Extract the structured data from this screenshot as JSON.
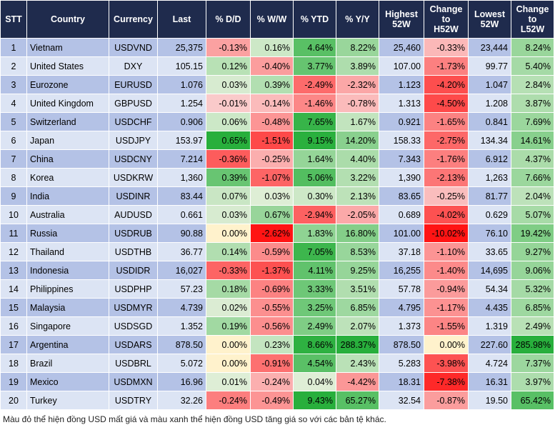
{
  "table": {
    "header": [
      [
        "STT"
      ],
      [
        "Country"
      ],
      [
        "Currency"
      ],
      [
        "Last"
      ],
      [
        "% D/D"
      ],
      [
        "% W/W"
      ],
      [
        "% YTD"
      ],
      [
        "% Y/Y"
      ],
      [
        "Highest",
        "52W"
      ],
      [
        "Change",
        "to",
        "H52W"
      ],
      [
        "Lowest",
        "52W"
      ],
      [
        "Change",
        "to",
        "L52W"
      ]
    ],
    "rows": [
      [
        "1",
        "Vietnam",
        "USDVND",
        "25,375",
        "-0.13%",
        "0.16%",
        "4.64%",
        "8.22%",
        "25,460",
        "-0.33%",
        "23,444",
        "8.24%"
      ],
      [
        "2",
        "United States",
        "DXY",
        "105.15",
        "0.12%",
        "-0.40%",
        "3.77%",
        "3.89%",
        "107.00",
        "-1.73%",
        "99.77",
        "5.40%"
      ],
      [
        "3",
        "Eurozone",
        "EURUSD",
        "1.076",
        "0.03%",
        "0.39%",
        "-2.49%",
        "-2.32%",
        "1.123",
        "-4.20%",
        "1.047",
        "2.84%"
      ],
      [
        "4",
        "United Kingdom",
        "GBPUSD",
        "1.254",
        "-0.01%",
        "-0.14%",
        "-1.46%",
        "-0.78%",
        "1.313",
        "-4.50%",
        "1.208",
        "3.87%"
      ],
      [
        "5",
        "Switzerland",
        "USDCHF",
        "0.906",
        "0.06%",
        "-0.48%",
        "7.65%",
        "1.67%",
        "0.921",
        "-1.65%",
        "0.841",
        "7.69%"
      ],
      [
        "6",
        "Japan",
        "USDJPY",
        "153.97",
        "0.65%",
        "-1.51%",
        "9.15%",
        "14.20%",
        "158.33",
        "-2.75%",
        "134.34",
        "14.61%"
      ],
      [
        "7",
        "China",
        "USDCNY",
        "7.214",
        "-0.36%",
        "-0.25%",
        "1.64%",
        "4.40%",
        "7.343",
        "-1.76%",
        "6.912",
        "4.37%"
      ],
      [
        "8",
        "Korea",
        "USDKRW",
        "1,360",
        "0.39%",
        "-1.07%",
        "5.06%",
        "3.22%",
        "1,390",
        "-2.13%",
        "1,263",
        "7.66%"
      ],
      [
        "9",
        "India",
        "USDINR",
        "83.44",
        "0.07%",
        "0.03%",
        "0.30%",
        "2.13%",
        "83.65",
        "-0.25%",
        "81.77",
        "2.04%"
      ],
      [
        "10",
        "Australia",
        "AUDUSD",
        "0.661",
        "0.03%",
        "0.67%",
        "-2.94%",
        "-2.05%",
        "0.689",
        "-4.02%",
        "0.629",
        "5.07%"
      ],
      [
        "11",
        "Russia",
        "USDRUB",
        "90.88",
        "0.00%",
        "-2.62%",
        "1.83%",
        "16.80%",
        "101.00",
        "-10.02%",
        "76.10",
        "19.42%"
      ],
      [
        "12",
        "Thailand",
        "USDTHB",
        "36.77",
        "0.14%",
        "-0.59%",
        "7.05%",
        "8.53%",
        "37.18",
        "-1.10%",
        "33.65",
        "9.27%"
      ],
      [
        "13",
        "Indonesia",
        "USDIDR",
        "16,027",
        "-0.33%",
        "-1.37%",
        "4.11%",
        "9.25%",
        "16,255",
        "-1.40%",
        "14,695",
        "9.06%"
      ],
      [
        "14",
        "Philippines",
        "USDPHP",
        "57.23",
        "0.18%",
        "-0.69%",
        "3.33%",
        "3.51%",
        "57.78",
        "-0.94%",
        "54.34",
        "5.32%"
      ],
      [
        "15",
        "Malaysia",
        "USDMYR",
        "4.739",
        "0.02%",
        "-0.55%",
        "3.25%",
        "6.85%",
        "4.795",
        "-1.17%",
        "4.435",
        "6.85%"
      ],
      [
        "16",
        "Singapore",
        "USDSGD",
        "1.352",
        "0.19%",
        "-0.56%",
        "2.49%",
        "2.07%",
        "1.373",
        "-1.55%",
        "1.319",
        "2.49%"
      ],
      [
        "17",
        "Argentina",
        "USDARS",
        "878.50",
        "0.00%",
        "0.23%",
        "8.66%",
        "288.37%",
        "878.50",
        "0.00%",
        "227.60",
        "285.98%"
      ],
      [
        "18",
        "Brazil",
        "USDBRL",
        "5.072",
        "0.00%",
        "-0.91%",
        "4.54%",
        "2.43%",
        "5.283",
        "-3.98%",
        "4.724",
        "7.37%"
      ],
      [
        "19",
        "Mexico",
        "USDMXN",
        "16.96",
        "0.01%",
        "-0.24%",
        "0.04%",
        "-4.42%",
        "18.31",
        "-7.38%",
        "16.31",
        "3.97%"
      ],
      [
        "20",
        "Turkey",
        "USDTRY",
        "32.26",
        "-0.24%",
        "-0.49%",
        "9.43%",
        "65.27%",
        "32.54",
        "-0.87%",
        "19.50",
        "65.42%"
      ]
    ]
  },
  "footnote": "Màu đỏ thể hiện đồng USD mất giá và màu xanh thể hiện đồng USD tăng giá so với các bản tệ khác."
}
